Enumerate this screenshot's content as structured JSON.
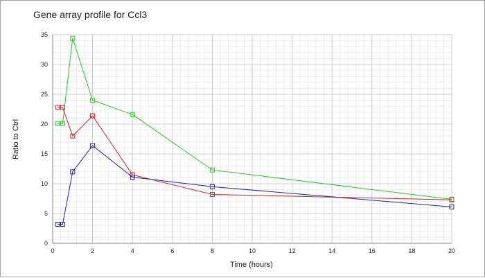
{
  "chart_data": {
    "type": "line",
    "title": "Gene array profile for Ccl3",
    "xlabel": "Time (hours)",
    "ylabel": "Ratio to Ctrl",
    "xlim": [
      0,
      20
    ],
    "ylim": [
      0,
      35
    ],
    "x_ticks": [
      0,
      2,
      4,
      6,
      8,
      10,
      12,
      14,
      16,
      18,
      20
    ],
    "y_ticks": [
      0,
      5,
      10,
      15,
      20,
      25,
      30,
      35
    ],
    "grid": true,
    "minor_grid": true,
    "marker": "square",
    "legend": "none",
    "x": [
      0.25,
      0.5,
      1,
      2,
      4,
      8,
      20
    ],
    "series": [
      {
        "color": "#22cc22",
        "values": [
          20.1,
          20.1,
          34.4,
          24.0,
          21.6,
          12.3,
          7.4
        ]
      },
      {
        "color": "#cc2222",
        "values": [
          22.8,
          22.8,
          18.0,
          21.4,
          11.5,
          8.2,
          7.3
        ]
      },
      {
        "color": "#2222aa",
        "values": [
          3.2,
          3.2,
          12.0,
          16.4,
          11.1,
          9.5,
          6.1
        ]
      }
    ]
  }
}
